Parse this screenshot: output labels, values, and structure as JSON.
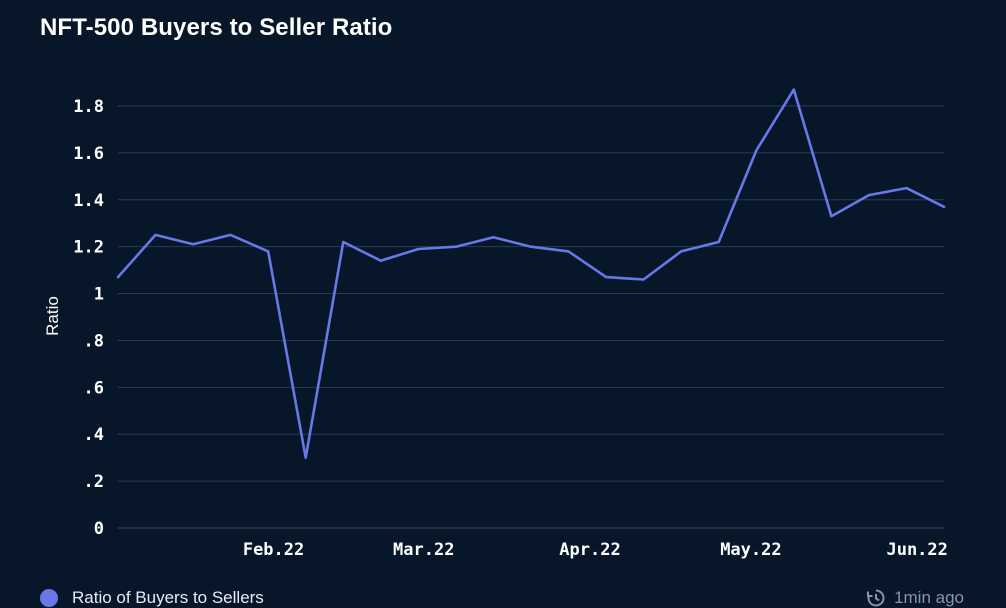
{
  "header": {
    "title": "NFT-500 Buyers to Seller Ratio"
  },
  "legend": {
    "label": "Ratio of Buyers to Sellers"
  },
  "footer": {
    "updated": "1min ago"
  },
  "colors": {
    "background": "#071629",
    "line": "#6878e8",
    "grid": "#2a3a52",
    "legend_dot": "#6878e8"
  },
  "chart_data": {
    "type": "line",
    "title": "NFT-500 Buyers to Seller Ratio",
    "xlabel": "",
    "ylabel": "Ratio",
    "x": [
      "2022-01-03",
      "2022-01-10",
      "2022-01-17",
      "2022-01-24",
      "2022-01-31",
      "2022-02-07",
      "2022-02-14",
      "2022-02-21",
      "2022-02-28",
      "2022-03-07",
      "2022-03-14",
      "2022-03-21",
      "2022-03-28",
      "2022-04-04",
      "2022-04-11",
      "2022-04-18",
      "2022-04-25",
      "2022-05-02",
      "2022-05-09",
      "2022-05-16",
      "2022-05-23",
      "2022-05-30",
      "2022-06-06"
    ],
    "series": [
      {
        "name": "Ratio of Buyers to Sellers",
        "values": [
          1.07,
          1.25,
          1.21,
          1.25,
          1.18,
          0.3,
          1.22,
          1.14,
          1.19,
          1.2,
          1.24,
          1.2,
          1.18,
          1.07,
          1.06,
          1.18,
          1.22,
          1.61,
          1.87,
          1.33,
          1.42,
          1.45,
          1.37
        ]
      }
    ],
    "x_ticks": [
      {
        "date": "2022-02-01",
        "label": "Feb.22"
      },
      {
        "date": "2022-03-01",
        "label": "Mar.22"
      },
      {
        "date": "2022-04-01",
        "label": "Apr.22"
      },
      {
        "date": "2022-05-01",
        "label": "May.22"
      },
      {
        "date": "2022-06-01",
        "label": "Jun.22"
      }
    ],
    "y_ticks": [
      {
        "value": 0,
        "label": "0"
      },
      {
        "value": 0.2,
        "label": ".2"
      },
      {
        "value": 0.4,
        "label": ".4"
      },
      {
        "value": 0.6,
        "label": ".6"
      },
      {
        "value": 0.8,
        "label": ".8"
      },
      {
        "value": 1.0,
        "label": "1"
      },
      {
        "value": 1.2,
        "label": "1.2"
      },
      {
        "value": 1.4,
        "label": "1.4"
      },
      {
        "value": 1.6,
        "label": "1.6"
      },
      {
        "value": 1.8,
        "label": "1.8"
      }
    ],
    "ylim": [
      0,
      1.8
    ],
    "xlim": [
      "2022-01-03",
      "2022-06-06"
    ],
    "grid": true,
    "legend_position": "bottom-left"
  }
}
